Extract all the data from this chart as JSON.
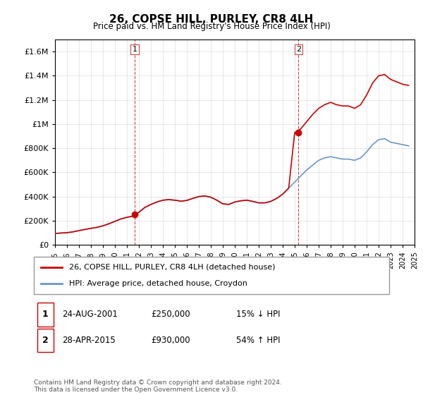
{
  "title": "26, COPSE HILL, PURLEY, CR8 4LH",
  "subtitle": "Price paid vs. HM Land Registry's House Price Index (HPI)",
  "legend_line1": "26, COPSE HILL, PURLEY, CR8 4LH (detached house)",
  "legend_line2": "HPI: Average price, detached house, Croydon",
  "annotation1_label": "1",
  "annotation1_date": "24-AUG-2001",
  "annotation1_price": "£250,000",
  "annotation1_hpi": "15% ↓ HPI",
  "annotation2_label": "2",
  "annotation2_date": "28-APR-2015",
  "annotation2_price": "£930,000",
  "annotation2_hpi": "54% ↑ HPI",
  "footer": "Contains HM Land Registry data © Crown copyright and database right 2024.\nThis data is licensed under the Open Government Licence v3.0.",
  "hpi_color": "#6699cc",
  "price_color": "#cc0000",
  "marker_color": "#cc0000",
  "vline_color": "#cc4444",
  "ylim": [
    0,
    1700000
  ],
  "yticks": [
    0,
    200000,
    400000,
    600000,
    800000,
    1000000,
    1200000,
    1400000,
    1600000
  ],
  "ytick_labels": [
    "£0",
    "£200K",
    "£400K",
    "£600K",
    "£800K",
    "£1M",
    "£1.2M",
    "£1.4M",
    "£1.6M"
  ],
  "sale1_x": 2001.65,
  "sale1_y": 250000,
  "sale2_x": 2015.32,
  "sale2_y": 930000,
  "hpi_x": [
    1995.0,
    1995.5,
    1996.0,
    1996.5,
    1997.0,
    1997.5,
    1998.0,
    1998.5,
    1999.0,
    1999.5,
    2000.0,
    2000.5,
    2001.0,
    2001.5,
    2002.0,
    2002.5,
    2003.0,
    2003.5,
    2004.0,
    2004.5,
    2005.0,
    2005.5,
    2006.0,
    2006.5,
    2007.0,
    2007.5,
    2008.0,
    2008.5,
    2009.0,
    2009.5,
    2010.0,
    2010.5,
    2011.0,
    2011.5,
    2012.0,
    2012.5,
    2013.0,
    2013.5,
    2014.0,
    2014.5,
    2015.0,
    2015.5,
    2016.0,
    2016.5,
    2017.0,
    2017.5,
    2018.0,
    2018.5,
    2019.0,
    2019.5,
    2020.0,
    2020.5,
    2021.0,
    2021.5,
    2022.0,
    2022.5,
    2023.0,
    2023.5,
    2024.0,
    2024.5
  ],
  "hpi_y": [
    95000,
    98000,
    101000,
    108000,
    118000,
    128000,
    137000,
    145000,
    158000,
    175000,
    195000,
    215000,
    228000,
    238000,
    270000,
    310000,
    335000,
    355000,
    370000,
    375000,
    370000,
    362000,
    368000,
    385000,
    400000,
    405000,
    395000,
    370000,
    340000,
    335000,
    355000,
    365000,
    370000,
    360000,
    348000,
    348000,
    360000,
    385000,
    420000,
    470000,
    520000,
    570000,
    620000,
    660000,
    700000,
    720000,
    730000,
    720000,
    710000,
    710000,
    700000,
    720000,
    770000,
    830000,
    870000,
    880000,
    850000,
    840000,
    830000,
    820000
  ],
  "price_x": [
    1995.0,
    1995.5,
    1996.0,
    1996.5,
    1997.0,
    1997.5,
    1998.0,
    1998.5,
    1999.0,
    1999.5,
    2000.0,
    2000.5,
    2001.0,
    2001.5,
    2002.0,
    2002.5,
    2003.0,
    2003.5,
    2004.0,
    2004.5,
    2005.0,
    2005.5,
    2006.0,
    2006.5,
    2007.0,
    2007.5,
    2008.0,
    2008.5,
    2009.0,
    2009.5,
    2010.0,
    2010.5,
    2011.0,
    2011.5,
    2012.0,
    2012.5,
    2013.0,
    2013.5,
    2014.0,
    2014.5,
    2015.0,
    2015.5,
    2016.0,
    2016.5,
    2017.0,
    2017.5,
    2018.0,
    2018.5,
    2019.0,
    2019.5,
    2020.0,
    2020.5,
    2021.0,
    2021.5,
    2022.0,
    2022.5,
    2023.0,
    2023.5,
    2024.0,
    2024.5
  ],
  "price_y": [
    95000,
    98000,
    101000,
    108000,
    118000,
    128000,
    137000,
    145000,
    158000,
    175000,
    195000,
    215000,
    228000,
    238000,
    270000,
    310000,
    335000,
    355000,
    370000,
    375000,
    370000,
    362000,
    368000,
    385000,
    400000,
    405000,
    395000,
    370000,
    340000,
    335000,
    355000,
    365000,
    370000,
    360000,
    348000,
    348000,
    360000,
    385000,
    420000,
    470000,
    930000,
    960000,
    1020000,
    1080000,
    1130000,
    1160000,
    1180000,
    1160000,
    1150000,
    1150000,
    1130000,
    1160000,
    1240000,
    1340000,
    1400000,
    1410000,
    1370000,
    1350000,
    1330000,
    1320000
  ],
  "xmin": 1995.0,
  "xmax": 2025.0,
  "xtick_years": [
    1995,
    1996,
    1997,
    1998,
    1999,
    2000,
    2001,
    2002,
    2003,
    2004,
    2005,
    2006,
    2007,
    2008,
    2009,
    2010,
    2011,
    2012,
    2013,
    2014,
    2015,
    2016,
    2017,
    2018,
    2019,
    2020,
    2021,
    2022,
    2023,
    2024,
    2025
  ]
}
